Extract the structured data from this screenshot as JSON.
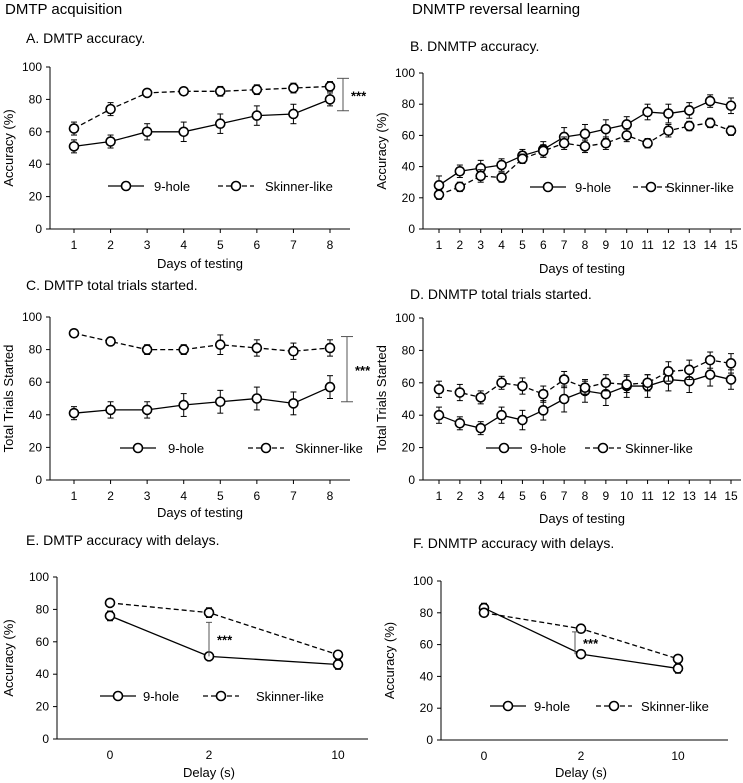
{
  "figure": {
    "left_heading": "DMTP acquisition",
    "right_heading": "DNMTP reversal learning"
  },
  "chart_data": [
    {
      "id": "A",
      "type": "line",
      "title": "A. DMTP accuracy.",
      "xlabel": "Days of testing",
      "ylabel": "Accuracy (%)",
      "ylim": [
        0,
        100
      ],
      "yticks": [
        0,
        20,
        40,
        60,
        80,
        100
      ],
      "categories": [
        "1",
        "2",
        "3",
        "4",
        "5",
        "6",
        "7",
        "8"
      ],
      "series": [
        {
          "name": "9-hole",
          "style": "solid",
          "values": [
            51,
            54,
            60,
            60,
            65,
            70,
            71,
            80
          ],
          "errors": [
            4,
            4,
            5,
            6,
            6,
            6,
            6,
            4
          ]
        },
        {
          "name": "Skinner-like",
          "style": "dashed",
          "values": [
            62,
            74,
            84,
            85,
            85,
            86,
            87,
            88
          ],
          "errors": [
            4,
            4,
            2,
            2,
            3,
            3,
            3,
            3
          ]
        }
      ],
      "legend": "bottom",
      "annotations": [
        {
          "text": "***",
          "type": "bracket",
          "y_low": 73,
          "y_high": 93,
          "at": "right"
        }
      ]
    },
    {
      "id": "B",
      "type": "line",
      "title": "B. DNMTP accuracy.",
      "xlabel": "Days of testing",
      "ylabel": "Accuracy (%)",
      "ylim": [
        0,
        100
      ],
      "yticks": [
        0,
        20,
        40,
        60,
        80,
        100
      ],
      "categories": [
        "1",
        "2",
        "3",
        "4",
        "5",
        "6",
        "7",
        "8",
        "9",
        "10",
        "11",
        "12",
        "13",
        "14",
        "15"
      ],
      "series": [
        {
          "name": "9-hole",
          "style": "solid",
          "values": [
            28,
            37,
            39,
            41,
            47,
            51,
            59,
            61,
            64,
            67,
            75,
            74,
            76,
            82,
            79
          ],
          "errors": [
            6,
            4,
            5,
            4,
            4,
            5,
            6,
            6,
            6,
            5,
            5,
            6,
            5,
            4,
            5
          ]
        },
        {
          "name": "Skinner-like",
          "style": "dashed",
          "values": [
            22,
            27,
            34,
            33,
            45,
            50,
            55,
            53,
            55,
            60,
            55,
            63,
            66,
            68,
            63
          ],
          "errors": [
            3,
            3,
            4,
            3,
            3,
            4,
            4,
            4,
            4,
            4,
            3,
            4,
            3,
            3,
            3
          ]
        }
      ],
      "legend": "bottom"
    },
    {
      "id": "C",
      "type": "line",
      "title": "C. DMTP total trials started.",
      "xlabel": "Days of testing",
      "ylabel": "Total Trials Started",
      "ylim": [
        0,
        100
      ],
      "yticks": [
        0,
        20,
        40,
        60,
        80,
        100
      ],
      "categories": [
        "1",
        "2",
        "3",
        "4",
        "5",
        "6",
        "7",
        "8"
      ],
      "series": [
        {
          "name": "9-hole",
          "style": "solid",
          "values": [
            41,
            43,
            43,
            46,
            48,
            50,
            47,
            57
          ],
          "errors": [
            4,
            5,
            5,
            7,
            7,
            7,
            7,
            7
          ]
        },
        {
          "name": "Skinner-like",
          "style": "dashed",
          "values": [
            90,
            85,
            80,
            80,
            83,
            81,
            79,
            81
          ],
          "errors": [
            2,
            2,
            3,
            3,
            6,
            5,
            5,
            5
          ]
        }
      ],
      "legend": "bottom",
      "annotations": [
        {
          "text": "***",
          "type": "bracket",
          "y_low": 48,
          "y_high": 88,
          "at": "right"
        }
      ]
    },
    {
      "id": "D",
      "type": "line",
      "title": "D. DNMTP total trials started.",
      "xlabel": "Days of testing",
      "ylabel": "Total Trials Started",
      "ylim": [
        0,
        100
      ],
      "yticks": [
        0,
        20,
        40,
        60,
        80,
        100
      ],
      "categories": [
        "1",
        "2",
        "3",
        "4",
        "5",
        "6",
        "7",
        "8",
        "9",
        "10",
        "11",
        "12",
        "13",
        "14",
        "15"
      ],
      "series": [
        {
          "name": "9-hole",
          "style": "solid",
          "values": [
            40,
            35,
            32,
            40,
            37,
            43,
            50,
            55,
            53,
            58,
            58,
            62,
            61,
            65,
            62
          ],
          "errors": [
            5,
            4,
            4,
            5,
            6,
            6,
            8,
            7,
            7,
            7,
            7,
            7,
            7,
            7,
            6
          ]
        },
        {
          "name": "Skinner-like",
          "style": "dashed",
          "values": [
            56,
            54,
            51,
            60,
            58,
            53,
            62,
            57,
            60,
            59,
            60,
            67,
            68,
            74,
            72
          ],
          "errors": [
            5,
            5,
            4,
            4,
            5,
            5,
            5,
            4,
            5,
            5,
            5,
            6,
            6,
            5,
            6
          ]
        }
      ],
      "legend": "bottom"
    },
    {
      "id": "E",
      "type": "line",
      "title": "E. DMTP accuracy with delays.",
      "xlabel": "Delay (s)",
      "ylabel": "Accuracy (%)",
      "ylim": [
        0,
        100
      ],
      "yticks": [
        0,
        20,
        40,
        60,
        80,
        100
      ],
      "categories": [
        "0",
        "2",
        "10"
      ],
      "series": [
        {
          "name": "9-hole",
          "style": "solid",
          "values": [
            76,
            51,
            46
          ],
          "errors": [
            3,
            2,
            3
          ]
        },
        {
          "name": "Skinner-like",
          "style": "dashed",
          "values": [
            84,
            78,
            52
          ],
          "errors": [
            2,
            3,
            2
          ]
        }
      ],
      "legend": "bottom",
      "annotations": [
        {
          "text": "***",
          "type": "bracket",
          "y_low": 51,
          "y_high": 72,
          "at": "2"
        }
      ]
    },
    {
      "id": "F",
      "type": "line",
      "title": "F. DNMTP accuracy with delays.",
      "xlabel": "Delay (s)",
      "ylabel": "Accuracy (%)",
      "ylim": [
        0,
        100
      ],
      "yticks": [
        0,
        20,
        40,
        60,
        80,
        100
      ],
      "categories": [
        "0",
        "2",
        "10"
      ],
      "series": [
        {
          "name": "9-hole",
          "style": "solid",
          "values": [
            83,
            54,
            45
          ],
          "errors": [
            3,
            2,
            3
          ]
        },
        {
          "name": "Skinner-like",
          "style": "dashed",
          "values": [
            80,
            70,
            51
          ],
          "errors": [
            2,
            2,
            2
          ]
        }
      ],
      "legend": "bottom",
      "annotations": [
        {
          "text": "***",
          "type": "bracket",
          "y_low": 54,
          "y_high": 68,
          "at": "2"
        }
      ]
    }
  ]
}
